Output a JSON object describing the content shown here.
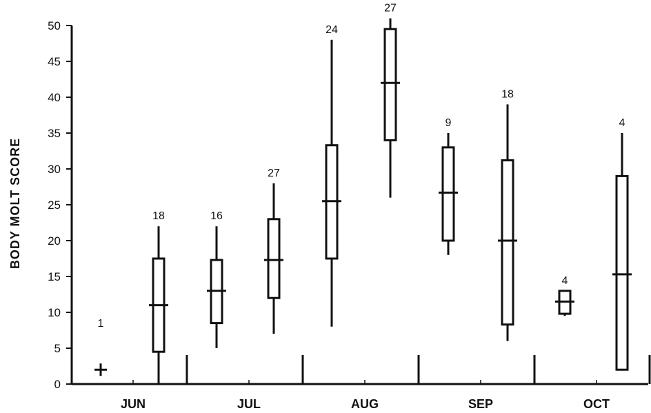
{
  "chart_data": {
    "type": "box",
    "ylabel": "BODY MOLT SCORE",
    "xlabel": "",
    "ylim": [
      0,
      50
    ],
    "yticks": [
      0,
      5,
      10,
      15,
      20,
      25,
      30,
      35,
      40,
      45,
      50
    ],
    "grid": false,
    "months": [
      "JUN",
      "JUL",
      "AUG",
      "SEP",
      "OCT"
    ],
    "groups": [
      {
        "month": "JUN",
        "n": "1",
        "min": 2,
        "q1": 2,
        "median": 2,
        "q3": 2,
        "max": 2
      },
      {
        "month": "JUN",
        "n": "18",
        "min": 0,
        "q1": 4.5,
        "median": 11,
        "q3": 17.5,
        "max": 22
      },
      {
        "month": "JUL",
        "n": "16",
        "min": 5,
        "q1": 8.5,
        "median": 13,
        "q3": 17.3,
        "max": 22
      },
      {
        "month": "JUL",
        "n": "27",
        "min": 7,
        "q1": 12,
        "median": 17.3,
        "q3": 23,
        "max": 28
      },
      {
        "month": "AUG",
        "n": "24",
        "min": 8,
        "q1": 17.5,
        "median": 25.5,
        "q3": 33.3,
        "max": 48
      },
      {
        "month": "AUG",
        "n": "27",
        "min": 26,
        "q1": 34,
        "median": 42,
        "q3": 49.5,
        "max": 51
      },
      {
        "month": "SEP",
        "n": "9",
        "min": 18,
        "q1": 20,
        "median": 26.7,
        "q3": 33,
        "max": 35
      },
      {
        "month": "SEP",
        "n": "18",
        "min": 6,
        "q1": 8.3,
        "median": 20,
        "q3": 31.2,
        "max": 39
      },
      {
        "month": "OCT",
        "n": "4",
        "min": 9.5,
        "q1": 9.8,
        "median": 11.5,
        "q3": 13,
        "max": 13
      },
      {
        "month": "OCT",
        "n": "4",
        "min": 2,
        "q1": 2,
        "median": 15.3,
        "q3": 29,
        "max": 35
      }
    ]
  }
}
